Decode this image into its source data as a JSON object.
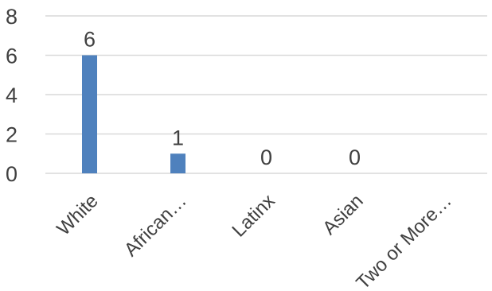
{
  "chart_data": {
    "type": "bar",
    "categories": [
      "White",
      "African…",
      "Latinx",
      "Asian",
      "Two or More…"
    ],
    "values": [
      6,
      1,
      0,
      0,
      null
    ],
    "data_labels": [
      "6",
      "1",
      "0",
      "0",
      ""
    ],
    "ylim": [
      0,
      8
    ],
    "yticks": [
      0,
      2,
      4,
      6,
      8
    ],
    "grid": true,
    "legend": "none",
    "title": "",
    "xlabel": "",
    "ylabel": "",
    "bar_color": "#4f81bd",
    "grid_color": "#d9d9d9",
    "text_color": "#404040"
  }
}
